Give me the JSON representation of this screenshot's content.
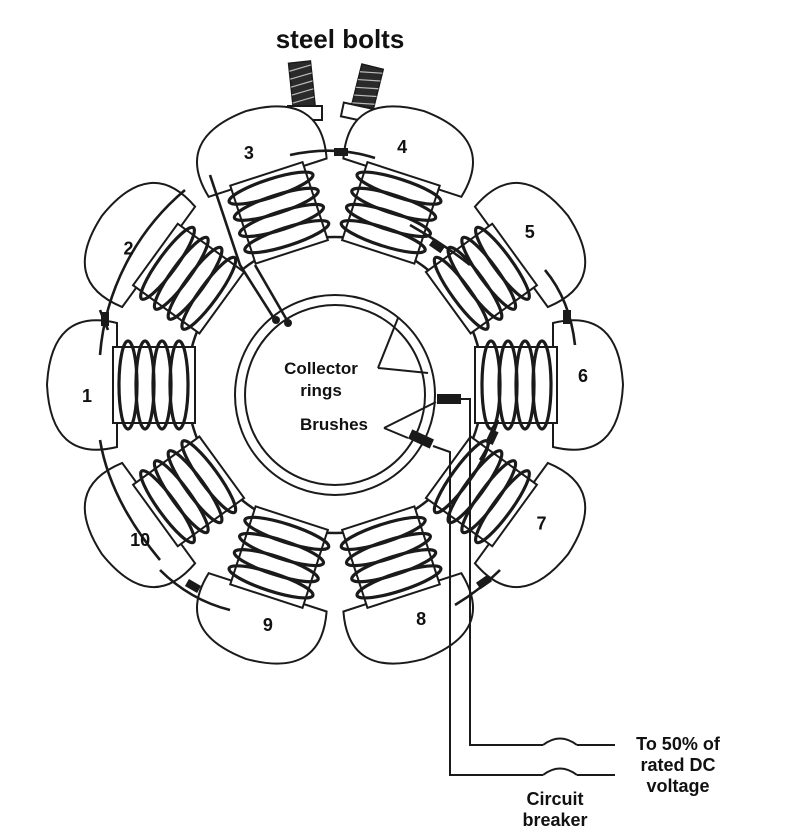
{
  "title": "steel bolts",
  "poles": [
    {
      "label": "1",
      "angle": 180
    },
    {
      "label": "2",
      "angle": 216
    },
    {
      "label": "3",
      "angle": 252
    },
    {
      "label": "4",
      "angle": 288
    },
    {
      "label": "5",
      "angle": 324
    },
    {
      "label": "6",
      "angle": 0
    },
    {
      "label": "7",
      "angle": 36
    },
    {
      "label": "8",
      "angle": 72
    },
    {
      "label": "9",
      "angle": 108
    },
    {
      "label": "10",
      "angle": 144
    }
  ],
  "labels": {
    "collector_line1": "Collector",
    "collector_line2": "rings",
    "brushes": "Brushes",
    "supply_line1": "To 50% of",
    "supply_line2": "rated DC",
    "supply_line3": "voltage",
    "breaker_line1": "Circuit",
    "breaker_line2": "breaker"
  }
}
